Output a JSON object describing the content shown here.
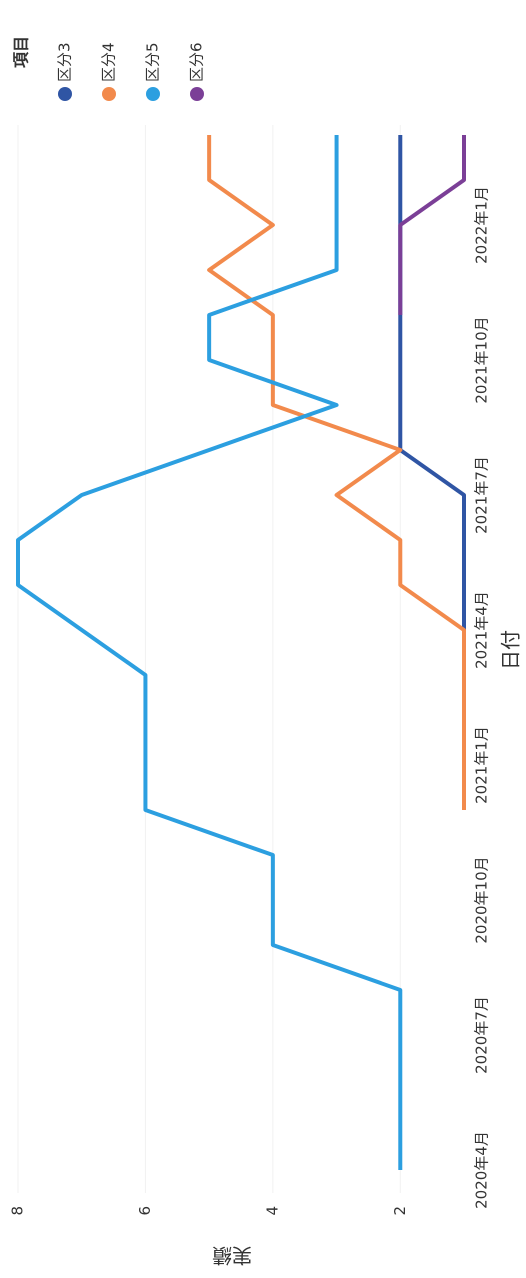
{
  "chart_data": {
    "type": "line",
    "x_label": "日付",
    "y_label": "実績",
    "legend_title": "項目",
    "legend": "top-right",
    "grid": true,
    "categories": [
      "2020年4月",
      null,
      null,
      "2020年7月",
      null,
      null,
      "2020年10月",
      null,
      null,
      "2021年1月",
      null,
      null,
      "2021年4月",
      null,
      null,
      "2021年7月",
      null,
      null,
      "2021年10月",
      null,
      null,
      "2022年1月",
      null,
      null
    ],
    "ylim": [
      1,
      8
    ],
    "yticks": [
      2,
      4,
      6,
      8
    ],
    "series": [
      {
        "name": "区分3",
        "color": "#2f55a4",
        "values": [
          null,
          null,
          null,
          null,
          null,
          null,
          null,
          null,
          null,
          null,
          null,
          null,
          1,
          1,
          1,
          1,
          2,
          2,
          2,
          2,
          2,
          2,
          2,
          2
        ]
      },
      {
        "name": "区分4",
        "color": "#f28a4c",
        "values": [
          null,
          null,
          null,
          null,
          null,
          null,
          null,
          null,
          1,
          1,
          1,
          1,
          1,
          2,
          2,
          3,
          2,
          4,
          4,
          4,
          5,
          4,
          5,
          5
        ]
      },
      {
        "name": "区分5",
        "color": "#2c9fe0",
        "values": [
          2,
          2,
          2,
          2,
          2,
          4,
          4,
          4,
          6,
          6,
          6,
          6,
          7,
          8,
          8,
          7,
          5,
          3,
          5,
          5,
          3,
          3,
          3,
          3
        ]
      },
      {
        "name": "区分6",
        "color": "#7b3f97",
        "values": [
          null,
          null,
          null,
          null,
          null,
          null,
          null,
          null,
          null,
          null,
          null,
          null,
          null,
          null,
          null,
          null,
          null,
          null,
          null,
          2,
          2,
          2,
          1,
          1
        ]
      }
    ]
  }
}
